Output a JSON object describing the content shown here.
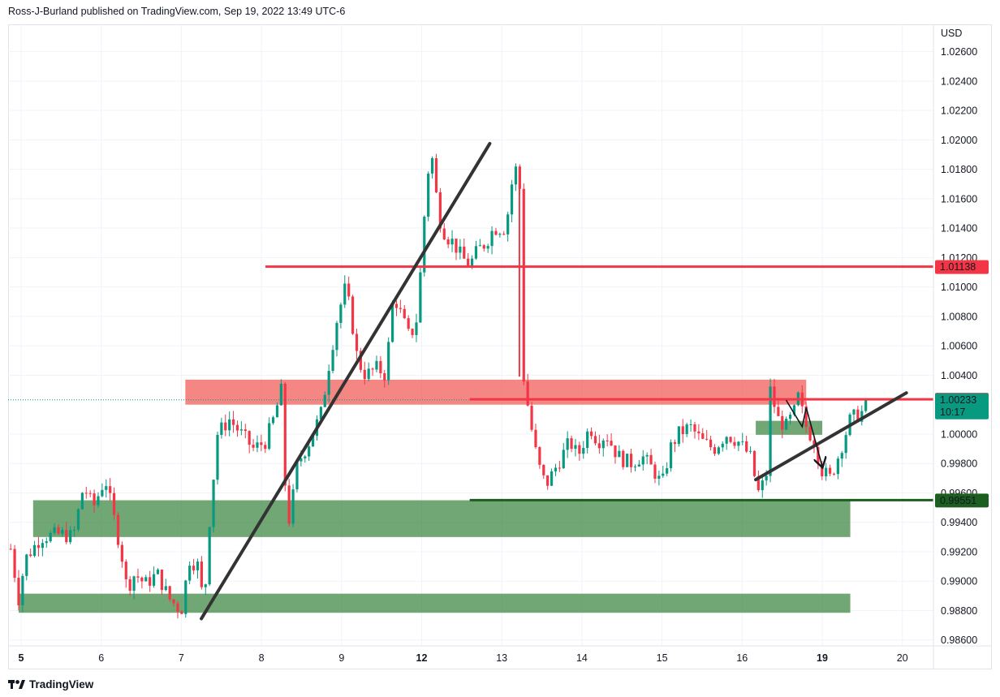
{
  "header": {
    "publisher_line": "Ross-J-Burland published on TradingView.com, Sep 19, 2022 13:49 UTC-6"
  },
  "footer": {
    "brand": "TradingView"
  },
  "chart_data": {
    "type": "candlestick",
    "currency_label": "USD",
    "y_ticks": [
      "1.02600",
      "1.02400",
      "1.02200",
      "1.02000",
      "1.01800",
      "1.01600",
      "1.01400",
      "1.01200",
      "1.01000",
      "1.00800",
      "1.00600",
      "1.00400",
      "1.00000",
      "0.99800",
      "0.99600",
      "0.99400",
      "0.99200",
      "0.99000",
      "0.98800",
      "0.98600"
    ],
    "ylim": [
      0.9856,
      1.0278
    ],
    "x_ticks": [
      {
        "label": "5",
        "day": 0,
        "bold": true
      },
      {
        "label": "6",
        "day": 1,
        "bold": false
      },
      {
        "label": "7",
        "day": 2,
        "bold": false
      },
      {
        "label": "8",
        "day": 3,
        "bold": false
      },
      {
        "label": "9",
        "day": 4,
        "bold": false
      },
      {
        "label": "12",
        "day": 5,
        "bold": true
      },
      {
        "label": "13",
        "day": 6,
        "bold": false
      },
      {
        "label": "14",
        "day": 7,
        "bold": false
      },
      {
        "label": "15",
        "day": 8,
        "bold": false
      },
      {
        "label": "16",
        "day": 9,
        "bold": false
      },
      {
        "label": "19",
        "day": 10,
        "bold": true
      },
      {
        "label": "20",
        "day": 11,
        "bold": false
      }
    ],
    "price_path": [
      [
        -0.13,
        0.9922
      ],
      [
        -0.03,
        0.9888
      ],
      [
        0.05,
        0.9915
      ],
      [
        0.25,
        0.993
      ],
      [
        0.5,
        0.9932
      ],
      [
        0.65,
        0.993
      ],
      [
        0.78,
        0.9965
      ],
      [
        0.9,
        0.995
      ],
      [
        1.05,
        0.997
      ],
      [
        1.15,
        0.9945
      ],
      [
        1.25,
        0.992
      ],
      [
        1.32,
        0.9895
      ],
      [
        1.42,
        0.9905
      ],
      [
        1.55,
        0.9898
      ],
      [
        1.7,
        0.9905
      ],
      [
        1.85,
        0.9888
      ],
      [
        2.0,
        0.988
      ],
      [
        2.1,
        0.9915
      ],
      [
        2.22,
        0.991
      ],
      [
        2.28,
        0.988
      ],
      [
        2.35,
        0.994
      ],
      [
        2.45,
        1.0
      ],
      [
        2.6,
        1.001
      ],
      [
        2.75,
        1.0
      ],
      [
        2.9,
        0.999
      ],
      [
        3.05,
        0.9995
      ],
      [
        3.15,
        1.001
      ],
      [
        3.25,
        1.003
      ],
      [
        3.3,
        0.996
      ],
      [
        3.35,
        0.994
      ],
      [
        3.45,
        0.998
      ],
      [
        3.6,
        0.9995
      ],
      [
        3.75,
        1.0015
      ],
      [
        3.85,
        1.005
      ],
      [
        3.95,
        1.008
      ],
      [
        4.05,
        1.01
      ],
      [
        4.12,
        1.008
      ],
      [
        4.2,
        1.005
      ],
      [
        4.3,
        1.004
      ],
      [
        4.45,
        1.0045
      ],
      [
        4.55,
        1.004
      ],
      [
        4.65,
        1.0095
      ],
      [
        4.75,
        1.008
      ],
      [
        4.85,
        1.0065
      ],
      [
        4.95,
        1.008
      ],
      [
        5.02,
        1.014
      ],
      [
        5.1,
        1.019
      ],
      [
        5.15,
        1.0185
      ],
      [
        5.2,
        1.015
      ],
      [
        5.3,
        1.0135
      ],
      [
        5.4,
        1.013
      ],
      [
        5.5,
        1.012
      ],
      [
        5.6,
        1.0115
      ],
      [
        5.7,
        1.0125
      ],
      [
        5.8,
        1.013
      ],
      [
        5.9,
        1.014
      ],
      [
        6.05,
        1.014
      ],
      [
        6.15,
        1.018
      ],
      [
        6.22,
        1.018
      ],
      [
        6.27,
        1.004
      ],
      [
        6.35,
        1.001
      ],
      [
        6.45,
        0.998
      ],
      [
        6.55,
        0.9965
      ],
      [
        6.65,
        0.9975
      ],
      [
        6.75,
        0.9985
      ],
      [
        6.85,
        0.9995
      ],
      [
        6.95,
        0.9985
      ],
      [
        7.1,
        1.0005
      ],
      [
        7.2,
        0.9995
      ],
      [
        7.3,
        1.0
      ],
      [
        7.45,
        0.9985
      ],
      [
        7.6,
        0.998
      ],
      [
        7.75,
        0.9985
      ],
      [
        7.9,
        0.9975
      ],
      [
        8.0,
        0.9965
      ],
      [
        8.1,
        0.999
      ],
      [
        8.2,
        1.0
      ],
      [
        8.35,
        1.0005
      ],
      [
        8.5,
        0.9995
      ],
      [
        8.65,
        0.999
      ],
      [
        8.8,
        1.0
      ],
      [
        8.95,
        0.9995
      ],
      [
        9.1,
        0.9985
      ],
      [
        9.2,
        0.996
      ],
      [
        9.3,
        0.997
      ],
      [
        9.35,
        1.003
      ],
      [
        9.45,
        1.001
      ],
      [
        9.55,
        1.0005
      ],
      [
        9.65,
        1.0015
      ],
      [
        9.7,
        1.0025
      ],
      [
        9.8,
        1.0005
      ],
      [
        9.9,
        0.9995
      ],
      [
        10.0,
        0.9975
      ],
      [
        10.1,
        0.997
      ],
      [
        10.2,
        0.9985
      ],
      [
        10.35,
        1.001
      ],
      [
        10.5,
        1.0015
      ],
      [
        10.56,
        1.00233
      ]
    ],
    "trendlines": [
      {
        "from": [
          2.25,
          0.98745
        ],
        "to": [
          5.85,
          1.01975
        ],
        "color": "#333333"
      },
      {
        "from": [
          9.17,
          0.9969
        ],
        "to": [
          11.05,
          1.0028
        ],
        "color": "#333333"
      }
    ],
    "zones": [
      {
        "x0": 2.05,
        "x1": 9.8,
        "y0": 1.002,
        "y1": 1.0037,
        "color": "#ef5350",
        "opacity": 0.7
      },
      {
        "x0": 0.15,
        "x1": 10.35,
        "y0": 0.993,
        "y1": 0.9955,
        "color": "#2e7d32",
        "opacity": 0.68
      },
      {
        "x0": -0.03,
        "x1": 10.35,
        "y0": 0.98785,
        "y1": 0.98915,
        "color": "#2e7d32",
        "opacity": 0.68
      },
      {
        "x0": 9.17,
        "x1": 10.0,
        "y0": 0.99995,
        "y1": 1.0009,
        "color": "#2e7d32",
        "opacity": 0.68
      }
    ],
    "levels": [
      {
        "price": 1.01138,
        "x0": 3.05,
        "color": "#f23645",
        "label": "1.01138"
      },
      {
        "price": 1.00236,
        "x0": 5.6,
        "color": "#f23645",
        "label": "1.00236"
      },
      {
        "price": 0.99551,
        "x0": 5.6,
        "color": "#1b5e20",
        "label": "0.99551"
      }
    ],
    "current_price": {
      "value": 1.00233,
      "label": "1.00233",
      "countdown": "10:17",
      "color": "#089981"
    },
    "vertical_drop": {
      "x": 6.22,
      "from": 1.0176,
      "to": 1.0039,
      "color": "#f23645"
    },
    "projection_arrows": [
      [
        [
          9.55,
          1.0023
        ],
        [
          9.75,
          1.0005
        ],
        [
          9.8,
          1.0018
        ],
        [
          10.0,
          0.9978
        ]
      ]
    ],
    "colors": {
      "up": "#089981",
      "down": "#f23645",
      "grid": "#f0f3fa",
      "axis_border": "#e0e3eb"
    }
  }
}
